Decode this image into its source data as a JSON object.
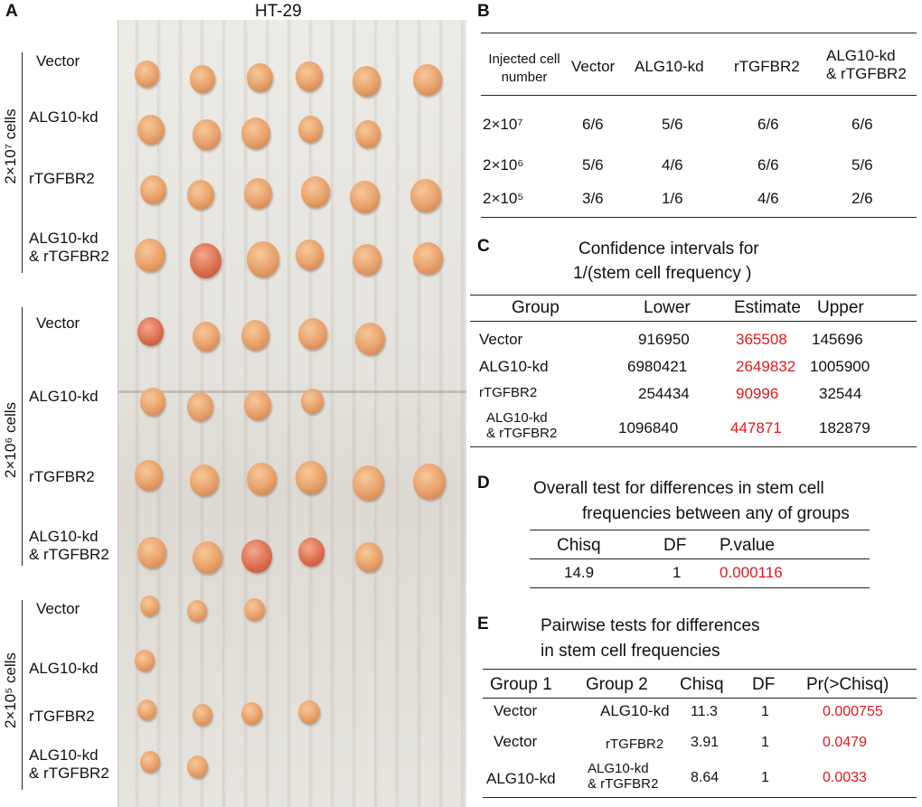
{
  "panelA": {
    "letter": "A",
    "title": "HT-29",
    "groups": [
      {
        "dose_label": "2×10⁷ cells",
        "rows": [
          "Vector",
          "ALG10-kd",
          "rTGFBR2",
          "ALG10-kd\n& rTGFBR2"
        ]
      },
      {
        "dose_label": "2×10⁶ cells",
        "rows": [
          "Vector",
          "ALG10-kd",
          "rTGFBR2",
          "ALG10-kd\n& rTGFBR2"
        ]
      },
      {
        "dose_label": "2×10⁵ cells",
        "rows": [
          "Vector",
          "ALG10-kd",
          "rTGFBR2",
          "ALG10-kd\n& rTGFBR2"
        ]
      }
    ],
    "tumor_counts": [
      6,
      5,
      6,
      6,
      5,
      4,
      6,
      5,
      3,
      1,
      4,
      2
    ]
  },
  "panelB": {
    "letter": "B",
    "headers": [
      "Injected cell\nnumber",
      "Vector",
      "ALG10-kd",
      "rTGFBR2",
      "ALG10-kd\n& rTGFBR2"
    ],
    "rows": [
      {
        "dose": "2×10⁷",
        "values": [
          "6/6",
          "5/6",
          "6/6",
          "6/6"
        ]
      },
      {
        "dose": "2×10⁶",
        "values": [
          "5/6",
          "4/6",
          "6/6",
          "5/6"
        ]
      },
      {
        "dose": "2×10⁵",
        "values": [
          "3/6",
          "1/6",
          "4/6",
          "2/6"
        ]
      }
    ]
  },
  "panelC": {
    "letter": "C",
    "title_line1": "Confidence intervals for",
    "title_line2": "1/(stem cell frequency )",
    "headers": [
      "Group",
      "Lower",
      "Estimate",
      "Upper"
    ],
    "rows": [
      {
        "group": "Vector",
        "lower": "916950",
        "estimate": "365508",
        "upper": "145696"
      },
      {
        "group": "ALG10-kd",
        "lower": "6980421",
        "estimate": "2649832",
        "upper": "1005900"
      },
      {
        "group": "rTGFBR2",
        "lower": "254434",
        "estimate": "90996",
        "upper": "32544"
      },
      {
        "group": "ALG10-kd\n& rTGFBR2",
        "lower": "1096840",
        "estimate": "447871",
        "upper": "182879"
      }
    ]
  },
  "panelD": {
    "letter": "D",
    "title_line1": "Overall test for differences in stem cell",
    "title_line2": "frequencies between any of groups",
    "headers": [
      "Chisq",
      "DF",
      "P.value"
    ],
    "row": {
      "chisq": "14.9",
      "df": "1",
      "pvalue": "0.000116"
    }
  },
  "panelE": {
    "letter": "E",
    "title_line1": "Pairwise tests for differences",
    "title_line2": "in stem cell frequencies",
    "headers": [
      "Group 1",
      "Group 2",
      "Chisq",
      "DF",
      "Pr(>Chisq)"
    ],
    "rows": [
      {
        "g1": "Vector",
        "g2": "ALG10-kd",
        "chisq": "11.3",
        "df": "1",
        "p": "0.000755"
      },
      {
        "g1": "Vector",
        "g2": "rTGFBR2",
        "chisq": "3.91",
        "df": "1",
        "p": "0.0479"
      },
      {
        "g1": "ALG10-kd",
        "g2": "ALG10-kd\n& rTGFBR2",
        "chisq": "8.64",
        "df": "1",
        "p": "0.0033"
      }
    ]
  },
  "colors": {
    "highlight": "#e0191c",
    "tumor": "#e9a36c",
    "paper": "#e6e4de"
  }
}
